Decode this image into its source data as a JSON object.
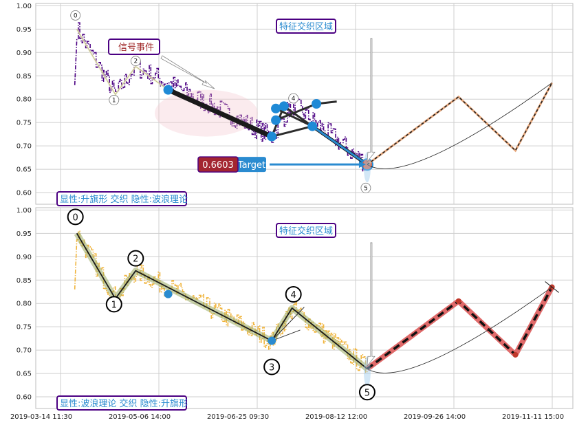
{
  "chart_data": [
    {
      "type": "line",
      "panel": "top",
      "ylim": [
        0.575,
        1.005
      ],
      "y_ticks": [
        "1.00",
        "0.95",
        "0.90",
        "0.85",
        "0.80",
        "0.75",
        "0.70",
        "0.65",
        "0.60"
      ],
      "x_tick_labels": [
        "2019-03-14 11:30",
        "2019-05-06 14:00",
        "2019-06-25 09:30",
        "2019-08-12 12:00",
        "2019-09-26 14:00",
        "2019-11-11 15:00"
      ],
      "wave_points": [
        {
          "label": "0",
          "x": "2019-03-22",
          "y": 0.95
        },
        {
          "label": "1",
          "x": "2019-04-10",
          "y": 0.81
        },
        {
          "label": "2",
          "x": "2019-04-20",
          "y": 0.87
        },
        {
          "label": "3",
          "x": "2019-06-26",
          "y": 0.72
        },
        {
          "label": "4",
          "x": "2019-07-06",
          "y": 0.79
        },
        {
          "label": "5",
          "x": "2019-08-12",
          "y": 0.66
        }
      ],
      "forecast_points": [
        {
          "x": "2019-08-12",
          "y": 0.66
        },
        {
          "x": "2019-09-26",
          "y": 0.805
        },
        {
          "x": "2019-10-24",
          "y": 0.69
        },
        {
          "x": "2019-11-11",
          "y": 0.835
        }
      ],
      "marker_points": [
        {
          "x": "2019-05-06",
          "y": 0.82
        },
        {
          "x": "2019-06-26",
          "y": 0.72
        },
        {
          "x": "2019-06-28",
          "y": 0.755
        },
        {
          "x": "2019-06-28",
          "y": 0.78
        },
        {
          "x": "2019-07-02",
          "y": 0.785
        },
        {
          "x": "2019-07-16",
          "y": 0.742
        },
        {
          "x": "2019-07-18",
          "y": 0.79
        },
        {
          "x": "2019-08-12",
          "y": 0.66
        }
      ],
      "annotations": {
        "zone_label": "特征交织区域",
        "signal_label": "信号事件",
        "value_badge": "0.6603",
        "target_label": "Target",
        "pattern_label": "显性:升旗形 交织 隐性:波浪理论"
      }
    },
    {
      "type": "line",
      "panel": "bottom",
      "ylim": [
        0.575,
        1.005
      ],
      "y_ticks": [
        "1.00",
        "0.95",
        "0.90",
        "0.85",
        "0.80",
        "0.75",
        "0.70",
        "0.65",
        "0.60"
      ],
      "x_tick_labels": [
        "2019-03-14 11:30",
        "2019-05-06 14:00",
        "2019-06-25 09:30",
        "2019-08-12 12:00",
        "2019-09-26 14:00",
        "2019-11-11 15:00"
      ],
      "wave_points": [
        {
          "label": "0",
          "x": "2019-03-22",
          "y": 0.95
        },
        {
          "label": "1",
          "x": "2019-04-10",
          "y": 0.81
        },
        {
          "label": "2",
          "x": "2019-04-20",
          "y": 0.87
        },
        {
          "label": "3",
          "x": "2019-06-26",
          "y": 0.72
        },
        {
          "label": "4",
          "x": "2019-07-06",
          "y": 0.79
        },
        {
          "label": "5",
          "x": "2019-08-12",
          "y": 0.66
        }
      ],
      "forecast_points": [
        {
          "x": "2019-08-12",
          "y": 0.66
        },
        {
          "x": "2019-09-26",
          "y": 0.805
        },
        {
          "x": "2019-10-24",
          "y": 0.69
        },
        {
          "x": "2019-11-11",
          "y": 0.835
        }
      ],
      "annotations": {
        "zone_label": "特征交织区域",
        "pattern_label": "显性:波浪理论 交织 隐性:升旗形"
      }
    }
  ]
}
